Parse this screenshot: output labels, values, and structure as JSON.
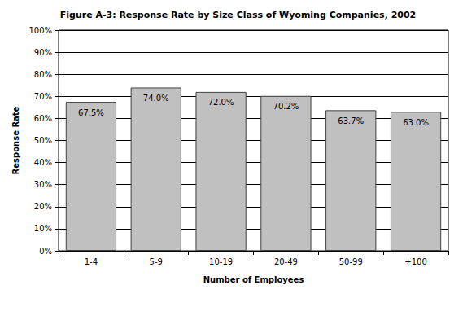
{
  "chart_data": {
    "type": "bar",
    "title": "Figure A-3: Response Rate by Size Class of Wyoming Companies, 2002",
    "x_label": "Number of Employees",
    "y_label": "Response Rate",
    "categories": [
      "1-4",
      "5-9",
      "10-19",
      "20-49",
      "50-99",
      "+100"
    ],
    "values": [
      67.5,
      74.0,
      72.0,
      70.2,
      63.7,
      63.0
    ],
    "value_labels": [
      "67.5%",
      "74.0%",
      "72.0%",
      "70.2%",
      "63.7%",
      "63.0%"
    ],
    "color": "#c0c0c0",
    "ylim": [
      0,
      100
    ],
    "yticks": [
      {
        "value": 0,
        "label": "0%"
      },
      {
        "value": 10,
        "label": "10%"
      },
      {
        "value": 20,
        "label": "20%"
      },
      {
        "value": 30,
        "label": "30%"
      },
      {
        "value": 40,
        "label": "40%"
      },
      {
        "value": 50,
        "label": "50%"
      },
      {
        "value": 60,
        "label": "60%"
      },
      {
        "value": 70,
        "label": "70%"
      },
      {
        "value": 80,
        "label": "80%"
      },
      {
        "value": 90,
        "label": "90%"
      },
      {
        "value": 100,
        "label": "100%"
      }
    ],
    "grid": true,
    "data_labels": true
  }
}
